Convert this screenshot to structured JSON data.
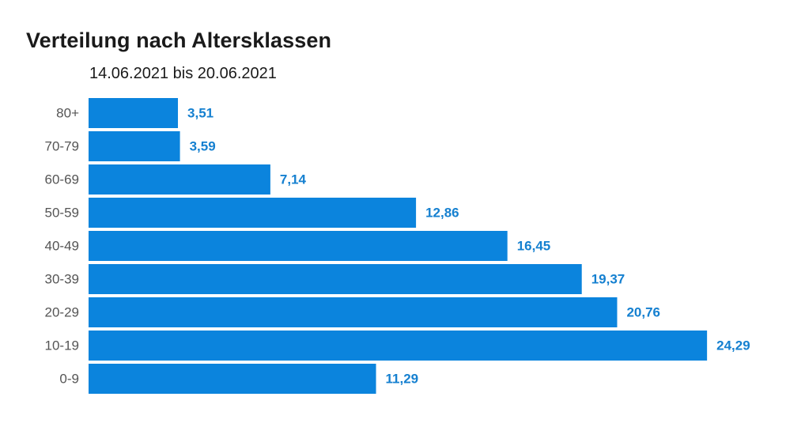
{
  "chart_data": {
    "type": "bar",
    "orientation": "horizontal",
    "title": "Verteilung nach Altersklassen",
    "subtitle": "14.06.2021 bis 20.06.2021",
    "categories": [
      "80+",
      "70-79",
      "60-69",
      "50-59",
      "40-49",
      "30-39",
      "20-29",
      "10-19",
      "0-9"
    ],
    "values": [
      3.51,
      3.59,
      7.14,
      12.86,
      16.45,
      19.37,
      20.76,
      24.29,
      11.29
    ],
    "value_labels": [
      "3,51",
      "3,59",
      "7,14",
      "12,86",
      "16,45",
      "19,37",
      "20,76",
      "24,29",
      "11,29"
    ],
    "xlabel": "",
    "ylabel": "",
    "xlim": [
      0,
      25
    ],
    "grid": false,
    "legend": "none",
    "bar_color": "#0b84dd",
    "label_color": "#1580d0"
  }
}
